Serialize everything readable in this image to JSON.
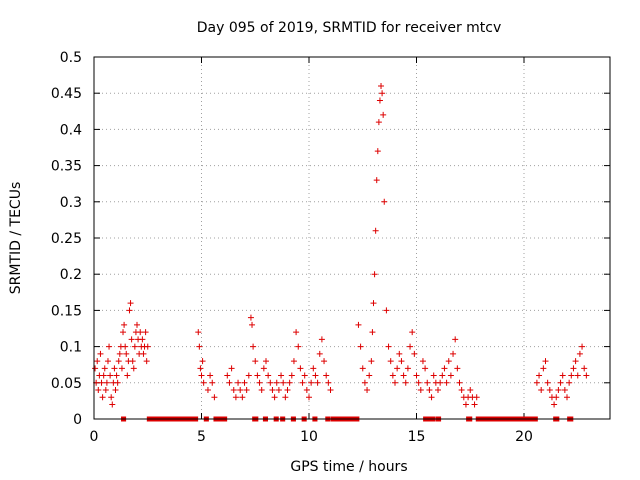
{
  "chart_data": {
    "type": "scatter",
    "title": "Day 095 of 2019, SRMTID for receiver mtcv",
    "xlabel": "GPS time / hours",
    "ylabel": "SRMTID / TECUs",
    "xlim": [
      0,
      24
    ],
    "ylim": [
      0,
      0.5
    ],
    "x_ticks": [
      0,
      5,
      10,
      15,
      20
    ],
    "x_tick_labels": [
      "0",
      "5",
      "10",
      "15",
      "20"
    ],
    "y_ticks": [
      0,
      0.05,
      0.1,
      0.15,
      0.2,
      0.25,
      0.3,
      0.35,
      0.4,
      0.45,
      0.5
    ],
    "y_tick_labels": [
      "0",
      "0.05",
      "0.1",
      "0.15",
      "0.2",
      "0.25",
      "0.3",
      "0.35",
      "0.4",
      "0.45",
      "0.5"
    ],
    "grid": true,
    "marker": "+",
    "color": "#dd0000",
    "series": [
      {
        "name": "SRMTID",
        "x": [
          0.05,
          0.1,
          0.15,
          0.2,
          0.25,
          0.3,
          0.35,
          0.4,
          0.45,
          0.5,
          0.55,
          0.6,
          0.65,
          0.7,
          0.75,
          0.8,
          0.85,
          0.9,
          0.95,
          1.0,
          1.05,
          1.1,
          1.15,
          1.2,
          1.25,
          1.3,
          1.35,
          1.4,
          1.45,
          1.5,
          1.55,
          1.6,
          1.65,
          1.7,
          1.75,
          1.8,
          1.85,
          1.9,
          1.95,
          2.0,
          2.05,
          2.1,
          2.15,
          2.2,
          2.25,
          2.3,
          2.35,
          2.4,
          2.45,
          2.5,
          4.85,
          4.9,
          4.95,
          5.0,
          5.05,
          5.1,
          5.3,
          5.4,
          5.5,
          5.6,
          6.2,
          6.3,
          6.4,
          6.5,
          6.6,
          6.7,
          6.8,
          6.9,
          7.0,
          7.1,
          7.2,
          7.3,
          7.35,
          7.4,
          7.5,
          7.6,
          7.7,
          7.8,
          7.9,
          8.0,
          8.1,
          8.2,
          8.3,
          8.4,
          8.5,
          8.6,
          8.7,
          8.8,
          8.9,
          9.0,
          9.1,
          9.2,
          9.3,
          9.4,
          9.5,
          9.6,
          9.7,
          9.8,
          9.9,
          10.0,
          10.1,
          10.2,
          10.3,
          10.4,
          10.5,
          10.6,
          10.7,
          10.8,
          10.9,
          11.0,
          12.3,
          12.4,
          12.5,
          12.6,
          12.7,
          12.8,
          12.9,
          12.95,
          13.0,
          13.05,
          13.1,
          13.15,
          13.2,
          13.25,
          13.3,
          13.35,
          13.4,
          13.45,
          13.5,
          13.6,
          13.7,
          13.8,
          13.9,
          14.0,
          14.1,
          14.2,
          14.3,
          14.4,
          14.5,
          14.6,
          14.7,
          14.8,
          14.9,
          15.0,
          15.1,
          15.2,
          15.3,
          15.4,
          15.5,
          15.6,
          15.7,
          15.8,
          15.9,
          16.0,
          16.1,
          16.2,
          16.3,
          16.4,
          16.5,
          16.6,
          16.7,
          16.8,
          16.9,
          17.0,
          17.1,
          17.2,
          17.3,
          17.4,
          17.5,
          17.6,
          17.7,
          17.8,
          20.6,
          20.7,
          20.8,
          20.9,
          21.0,
          21.1,
          21.2,
          21.3,
          21.4,
          21.5,
          21.6,
          21.7,
          21.8,
          21.9,
          22.0,
          22.1,
          22.2,
          22.3,
          22.4,
          22.5,
          22.6,
          22.7,
          22.8,
          22.9
        ],
        "y": [
          0.07,
          0.05,
          0.08,
          0.04,
          0.06,
          0.09,
          0.05,
          0.03,
          0.06,
          0.07,
          0.04,
          0.05,
          0.08,
          0.1,
          0.06,
          0.03,
          0.02,
          0.05,
          0.07,
          0.04,
          0.06,
          0.05,
          0.08,
          0.09,
          0.1,
          0.07,
          0.12,
          0.13,
          0.1,
          0.09,
          0.06,
          0.08,
          0.15,
          0.16,
          0.11,
          0.08,
          0.07,
          0.1,
          0.12,
          0.13,
          0.11,
          0.09,
          0.12,
          0.1,
          0.11,
          0.09,
          0.1,
          0.12,
          0.08,
          0.1,
          0.12,
          0.1,
          0.07,
          0.06,
          0.08,
          0.05,
          0.04,
          0.06,
          0.05,
          0.03,
          0.06,
          0.05,
          0.07,
          0.04,
          0.03,
          0.05,
          0.04,
          0.03,
          0.05,
          0.04,
          0.06,
          0.14,
          0.13,
          0.1,
          0.08,
          0.06,
          0.05,
          0.04,
          0.07,
          0.08,
          0.06,
          0.05,
          0.04,
          0.03,
          0.05,
          0.04,
          0.06,
          0.05,
          0.03,
          0.04,
          0.05,
          0.06,
          0.08,
          0.12,
          0.1,
          0.07,
          0.05,
          0.06,
          0.04,
          0.03,
          0.05,
          0.07,
          0.06,
          0.05,
          0.09,
          0.11,
          0.08,
          0.06,
          0.05,
          0.04,
          0.13,
          0.1,
          0.07,
          0.05,
          0.04,
          0.06,
          0.08,
          0.12,
          0.16,
          0.2,
          0.26,
          0.33,
          0.37,
          0.41,
          0.44,
          0.46,
          0.45,
          0.42,
          0.3,
          0.15,
          0.1,
          0.08,
          0.06,
          0.05,
          0.07,
          0.09,
          0.08,
          0.06,
          0.05,
          0.07,
          0.1,
          0.12,
          0.09,
          0.06,
          0.05,
          0.04,
          0.08,
          0.07,
          0.05,
          0.04,
          0.03,
          0.06,
          0.05,
          0.04,
          0.05,
          0.06,
          0.07,
          0.05,
          0.08,
          0.06,
          0.09,
          0.11,
          0.07,
          0.05,
          0.04,
          0.03,
          0.02,
          0.03,
          0.04,
          0.03,
          0.02,
          0.03,
          0.05,
          0.06,
          0.04,
          0.07,
          0.08,
          0.05,
          0.04,
          0.03,
          0.02,
          0.03,
          0.04,
          0.05,
          0.06,
          0.04,
          0.03,
          0.05,
          0.06,
          0.07,
          0.08,
          0.06,
          0.09,
          0.1,
          0.07,
          0.06
        ]
      }
    ],
    "zero_segments": [
      [
        1.35,
        1.4
      ],
      [
        2.55,
        4.75
      ],
      [
        5.2,
        5.25
      ],
      [
        5.65,
        6.1
      ],
      [
        7.45,
        7.55
      ],
      [
        7.95,
        8.0
      ],
      [
        8.45,
        8.5
      ],
      [
        8.75,
        8.8
      ],
      [
        9.25,
        9.3
      ],
      [
        9.75,
        9.8
      ],
      [
        10.25,
        10.3
      ],
      [
        10.85,
        10.9
      ],
      [
        11.1,
        12.25
      ],
      [
        15.4,
        15.8
      ],
      [
        16.0,
        16.05
      ],
      [
        17.4,
        17.5
      ],
      [
        17.85,
        20.55
      ],
      [
        21.45,
        21.55
      ],
      [
        22.1,
        22.2
      ]
    ]
  }
}
